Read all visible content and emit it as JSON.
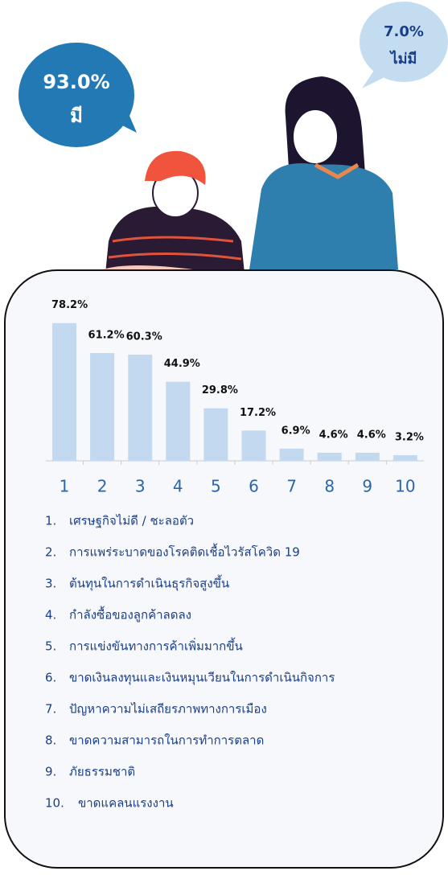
{
  "bubbles": [
    {
      "value": "93.0%",
      "label": "มี"
    },
    {
      "value": "7.0%",
      "label": "ไม่มี"
    }
  ],
  "chart_data": {
    "type": "bar",
    "categories": [
      "1",
      "2",
      "3",
      "4",
      "5",
      "6",
      "7",
      "8",
      "9",
      "10"
    ],
    "values": [
      78.2,
      61.2,
      60.3,
      44.9,
      29.8,
      17.2,
      6.9,
      4.6,
      4.6,
      3.2
    ],
    "value_labels": [
      "78.2%",
      "61.2%",
      "60.3%",
      "44.9%",
      "29.8%",
      "17.2%",
      "6.9%",
      "4.6%",
      "4.6%",
      "3.2%"
    ],
    "color": "#c3d9ef"
  },
  "list": [
    {
      "number": "1.",
      "text": "เศรษฐกิจไม่ดี / ชะลอตัว"
    },
    {
      "number": "2.",
      "text": "การแพร่ระบาดของโรคติดเชื้อไวรัสโควิด 19"
    },
    {
      "number": "3.",
      "text": "ต้นทุนในการดำเนินธุรกิจสูงขึ้น"
    },
    {
      "number": "4.",
      "text": "กำลังซื้อของลูกค้าลดลง"
    },
    {
      "number": "5.",
      "text": "การแข่งขันทางการค้าเพิ่มมากขึ้น"
    },
    {
      "number": "6.",
      "text": "ขาดเงินลงทุนและเงินหมุนเวียนในการดำเนินกิจการ"
    },
    {
      "number": "7.",
      "text": "ปัญหาความไม่เสถียรภาพทางการเมือง"
    },
    {
      "number": "8.",
      "text": "ขาดความสามารถในการทำการตลาด"
    },
    {
      "number": "9.",
      "text": "ภัยธรรมชาติ"
    },
    {
      "number": "10.",
      "text": "ขาดแคลนแรงงาน"
    }
  ]
}
